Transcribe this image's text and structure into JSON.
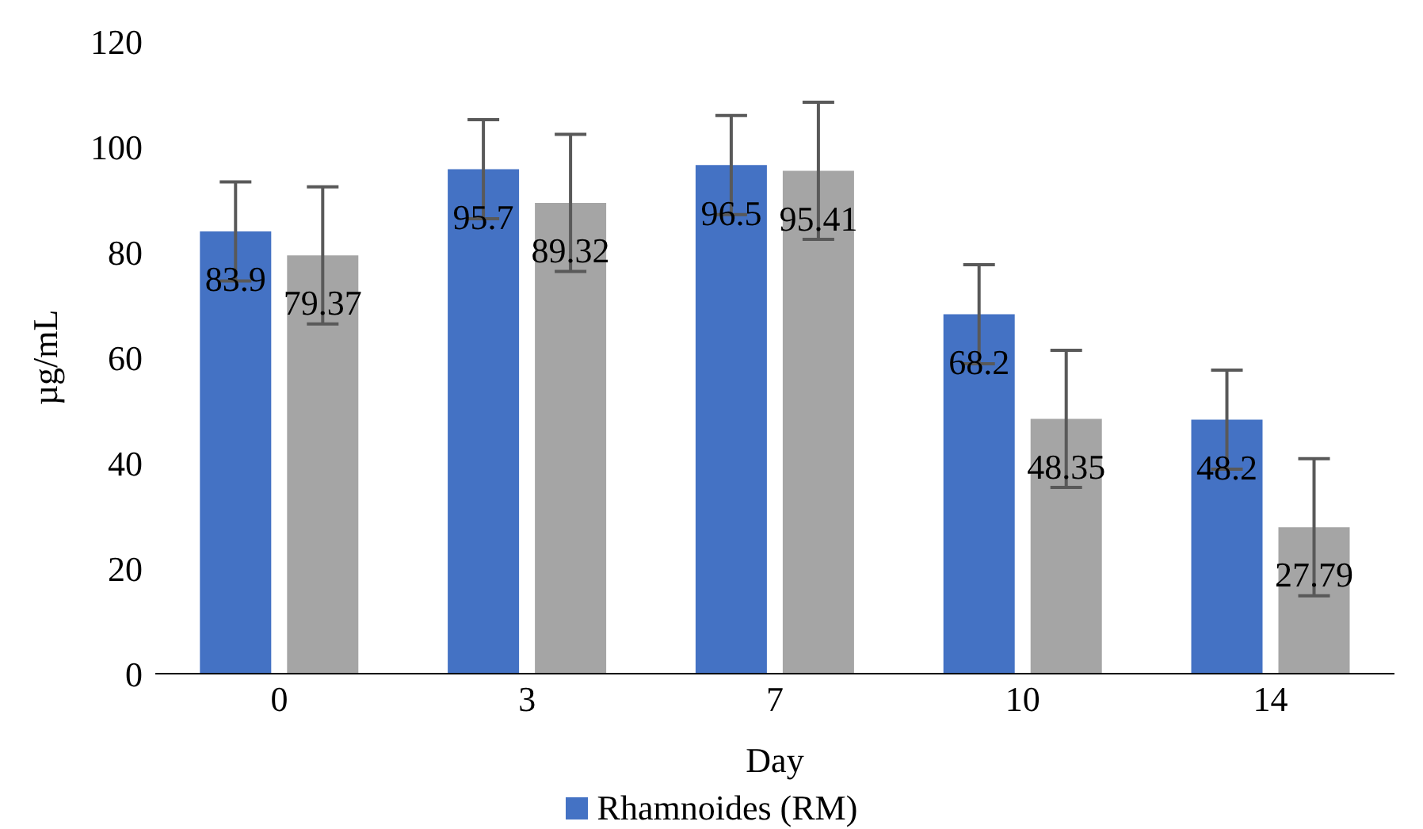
{
  "chart_data": {
    "type": "bar",
    "xlabel": "Day",
    "ylabel": "µg/mL",
    "categories": [
      "0",
      "3",
      "7",
      "10",
      "14"
    ],
    "series": [
      {
        "name": "Rhamnoides (RM)",
        "color": "#4472c4",
        "values": [
          83.9,
          95.7,
          96.5,
          68.2,
          48.2
        ],
        "errors": [
          9.4,
          9.4,
          9.4,
          9.4,
          9.4
        ]
      },
      {
        "color": "#a5a5a5",
        "values": [
          79.37,
          89.32,
          95.41,
          48.35,
          27.79
        ],
        "errors": [
          13,
          13,
          13,
          13,
          13
        ]
      }
    ],
    "ylim": [
      0,
      120
    ],
    "yticks": [
      0,
      20,
      40,
      60,
      80,
      100,
      120
    ],
    "grid": false,
    "legend": "bottom",
    "data_labels": true
  }
}
